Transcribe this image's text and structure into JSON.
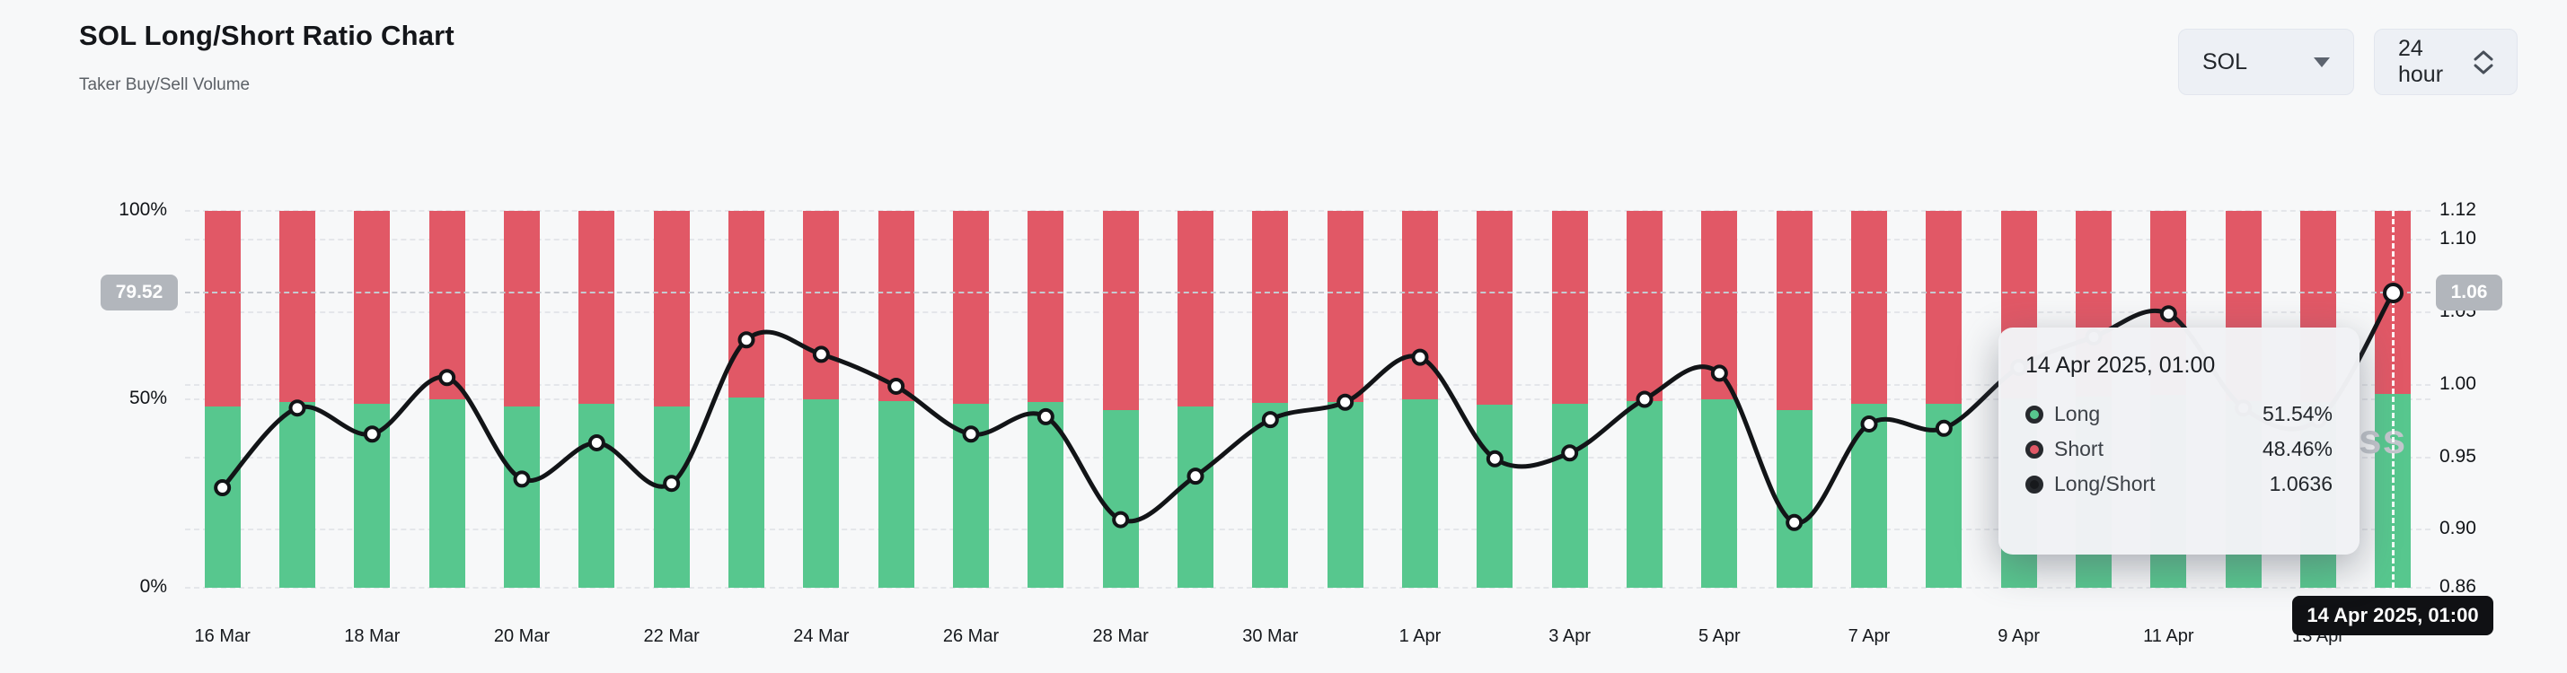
{
  "header": {
    "title": "SOL Long/Short Ratio Chart",
    "subtitle": "Taker Buy/Sell Volume"
  },
  "controls": {
    "symbol_select": {
      "value": "SOL"
    },
    "interval_select": {
      "value": "24 hour"
    }
  },
  "colors": {
    "long": "#57c78e",
    "short": "#e15866",
    "ratio_line": "#121417",
    "background": "#f7f8f9",
    "badge_gray": "#b2b6bc",
    "x_badge_black": "#101114"
  },
  "crosshair": {
    "left_badge": "79.52",
    "right_badge": "1.06",
    "x_badge": "14 Apr 2025, 01:00",
    "ratio_value": 1.0636
  },
  "tooltip": {
    "title": "14 Apr 2025, 01:00",
    "rows": [
      {
        "label": "Long",
        "value": "51.54%",
        "marker_color": "#57c78e"
      },
      {
        "label": "Short",
        "value": "48.46%",
        "marker_color": "#e15866"
      },
      {
        "label": "Long/Short",
        "value": "1.0636",
        "marker_color": "#17191c"
      }
    ]
  },
  "watermark_fragment": "ss",
  "chart_data": {
    "type": "stacked-bar-with-line",
    "title": "SOL Long/Short Ratio Chart",
    "x": [
      "16 Mar",
      "17 Mar",
      "18 Mar",
      "19 Mar",
      "20 Mar",
      "21 Mar",
      "22 Mar",
      "23 Mar",
      "24 Mar",
      "25 Mar",
      "26 Mar",
      "27 Mar",
      "28 Mar",
      "29 Mar",
      "30 Mar",
      "31 Mar",
      "1 Apr",
      "2 Apr",
      "3 Apr",
      "4 Apr",
      "5 Apr",
      "6 Apr",
      "7 Apr",
      "8 Apr",
      "9 Apr",
      "10 Apr",
      "11 Apr",
      "12 Apr",
      "13 Apr",
      "14 Apr"
    ],
    "x_label_step": 2,
    "series": [
      {
        "name": "Long",
        "type": "bar",
        "unit": "%",
        "values": [
          48.2,
          49.4,
          48.9,
          49.9,
          48.2,
          48.9,
          48.0,
          50.4,
          50.1,
          49.6,
          48.7,
          49.2,
          47.2,
          48.2,
          49.1,
          49.3,
          50.1,
          48.5,
          48.8,
          49.5,
          50.0,
          47.2,
          48.9,
          48.9,
          50.3,
          50.8,
          51.2,
          49.6,
          49.4,
          51.54
        ]
      },
      {
        "name": "Short",
        "type": "bar",
        "unit": "%",
        "values": [
          51.8,
          50.6,
          51.1,
          50.1,
          51.8,
          51.1,
          52.0,
          49.6,
          49.9,
          50.4,
          51.3,
          50.8,
          52.8,
          51.8,
          50.9,
          50.7,
          49.9,
          51.5,
          51.2,
          50.5,
          50.0,
          52.8,
          51.1,
          51.1,
          49.7,
          49.2,
          48.8,
          50.4,
          50.6,
          48.46
        ]
      },
      {
        "name": "Long/Short",
        "type": "line",
        "values": [
          0.929,
          0.984,
          0.966,
          1.005,
          0.935,
          0.96,
          0.932,
          1.031,
          1.021,
          0.999,
          0.966,
          0.978,
          0.907,
          0.937,
          0.976,
          0.988,
          1.019,
          0.949,
          0.953,
          0.99,
          1.008,
          0.905,
          0.973,
          0.97,
          1.012,
          1.033,
          1.049,
          0.984,
          0.976,
          1.0636
        ]
      }
    ],
    "left_axis": {
      "range": [
        0,
        100
      ],
      "ticks": [
        {
          "label": "0%",
          "value": 0
        },
        {
          "label": "50%",
          "value": 50
        },
        {
          "label": "100%",
          "value": 100
        }
      ]
    },
    "right_axis": {
      "range": [
        0.86,
        1.12
      ],
      "ticks": [
        {
          "label": "1.12",
          "value": 1.12
        },
        {
          "label": "1.10",
          "value": 1.1
        },
        {
          "label": "1.05",
          "value": 1.05
        },
        {
          "label": "1.00",
          "value": 1.0
        },
        {
          "label": "0.95",
          "value": 0.95
        },
        {
          "label": "0.90",
          "value": 0.9
        },
        {
          "label": "0.86",
          "value": 0.86
        }
      ]
    },
    "gridline_ratios": [
      1.12,
      1.1,
      1.05,
      1.0,
      0.95,
      0.9,
      0.86
    ],
    "gridline_left_percents": [
      50
    ],
    "legend_position": "none",
    "grid": true
  }
}
